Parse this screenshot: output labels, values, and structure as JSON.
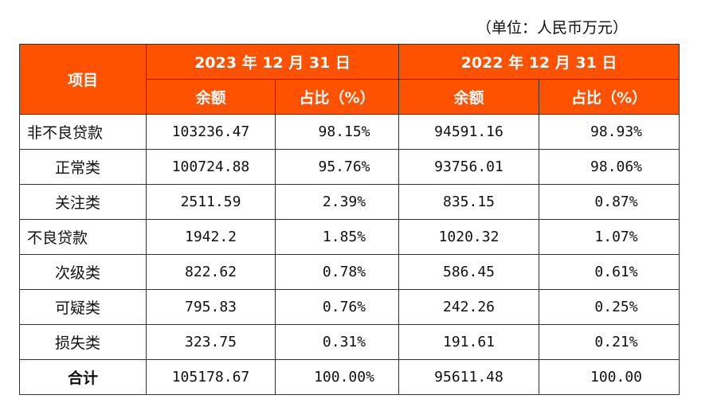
{
  "unit_note": "（单位：人民币万元）",
  "header": {
    "item": "项目",
    "period_2023": "2023 年 12 月 31 日",
    "period_2022": "2022 年 12 月 31 日",
    "balance": "余额",
    "ratio": "占比（%）"
  },
  "rows": [
    {
      "label": "非不良贷款",
      "level": "main",
      "bal_2023": "103236.47",
      "pct_2023": "98.15%",
      "bal_2022": "94591.16",
      "pct_2022": "98.93%"
    },
    {
      "label": "正常类",
      "level": "sub",
      "bal_2023": "100724.88",
      "pct_2023": "95.76%",
      "bal_2022": "93756.01",
      "pct_2022": "98.06%"
    },
    {
      "label": "关注类",
      "level": "sub",
      "bal_2023": "2511.59",
      "pct_2023": "2.39%",
      "bal_2022": "835.15",
      "pct_2022": "0.87%"
    },
    {
      "label": "不良贷款",
      "level": "main",
      "bal_2023": "1942.2",
      "pct_2023": "1.85%",
      "bal_2022": "1020.32",
      "pct_2022": "1.07%"
    },
    {
      "label": "次级类",
      "level": "sub",
      "bal_2023": "822.62",
      "pct_2023": "0.78%",
      "bal_2022": "586.45",
      "pct_2022": "0.61%"
    },
    {
      "label": "可疑类",
      "level": "sub",
      "bal_2023": "795.83",
      "pct_2023": "0.76%",
      "bal_2022": "242.26",
      "pct_2022": "0.25%"
    },
    {
      "label": "损失类",
      "level": "sub",
      "bal_2023": "323.75",
      "pct_2023": "0.31%",
      "bal_2022": "191.61",
      "pct_2022": "0.21%"
    }
  ],
  "total": {
    "label": "合计",
    "bal_2023": "105178.67",
    "pct_2023": "100.00%",
    "bal_2022": "95611.48",
    "pct_2022": "100.00"
  },
  "colors": {
    "header_bg": "#fe5200",
    "header_text": "#ffffff",
    "border": "#333333"
  }
}
